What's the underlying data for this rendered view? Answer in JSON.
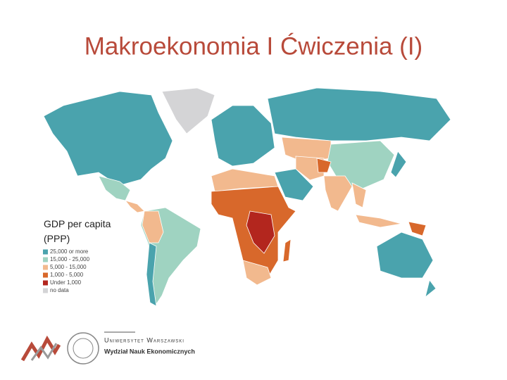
{
  "title": "Makroekonomia I Ćwiczenia (I)",
  "map": {
    "label": "GDP per capita (PPP)",
    "legend": [
      {
        "label": "25,000 or more",
        "color": "#4aa3ad"
      },
      {
        "label": "15,000 - 25,000",
        "color": "#9fd3c1"
      },
      {
        "label": "5,000 - 15,000",
        "color": "#f2b98e"
      },
      {
        "label": "1,000 - 5,000",
        "color": "#d8682b"
      },
      {
        "label": "Under 1,000",
        "color": "#b3261e"
      },
      {
        "label": "no data",
        "color": "#d4d4d6"
      }
    ]
  },
  "footer": {
    "university": "Uniwersytet Warszawski",
    "faculty": "Wydział Nauk Ekonomicznych"
  }
}
